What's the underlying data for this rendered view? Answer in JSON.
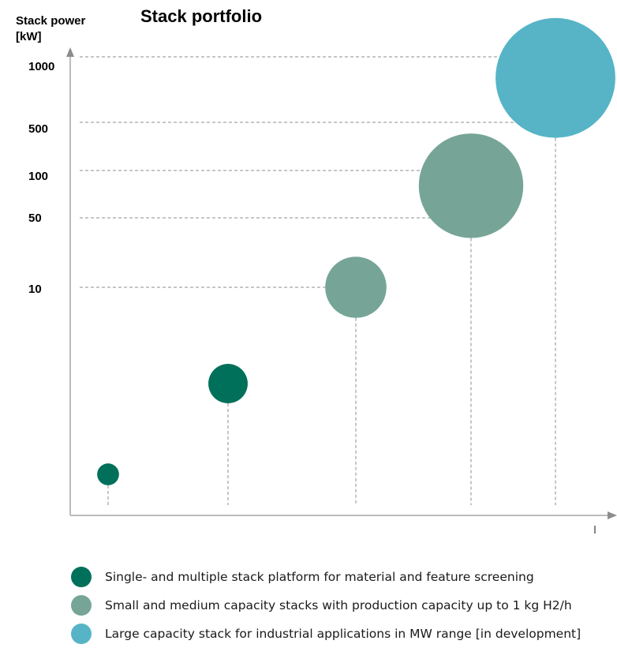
{
  "chart_data": {
    "type": "scatter",
    "title": "Stack portfolio",
    "ylabel": "Stack power\n[kW]",
    "xlabel": "",
    "yticks": [
      "1000",
      "500",
      "100",
      "50",
      "10"
    ],
    "grid": false,
    "legend_position": "bottom",
    "points": [
      {
        "category": 1,
        "power_kw": 0.25,
        "bubble_size": 1,
        "series": 0
      },
      {
        "category": 2,
        "power_kw": 2,
        "bubble_size": 1.8,
        "series": 0
      },
      {
        "category": 3,
        "power_kw": 10,
        "bubble_size": 2.8,
        "series": 1
      },
      {
        "category": 4,
        "power_kw": 80,
        "bubble_size": 4.2,
        "series": 1
      },
      {
        "category": 5,
        "power_kw": 800,
        "bubble_size": 4.9,
        "series": 2
      }
    ],
    "series": [
      {
        "name": "Single- and multiple stack platform for material and feature screening",
        "color": "#00705a"
      },
      {
        "name": "Small and medium capacity stacks with production capacity up to 1 kg H2/h",
        "color": "#76a597"
      },
      {
        "name": "Large capacity stack for industrial applications in MW range [in development]",
        "color": "#56b4c6"
      }
    ]
  }
}
